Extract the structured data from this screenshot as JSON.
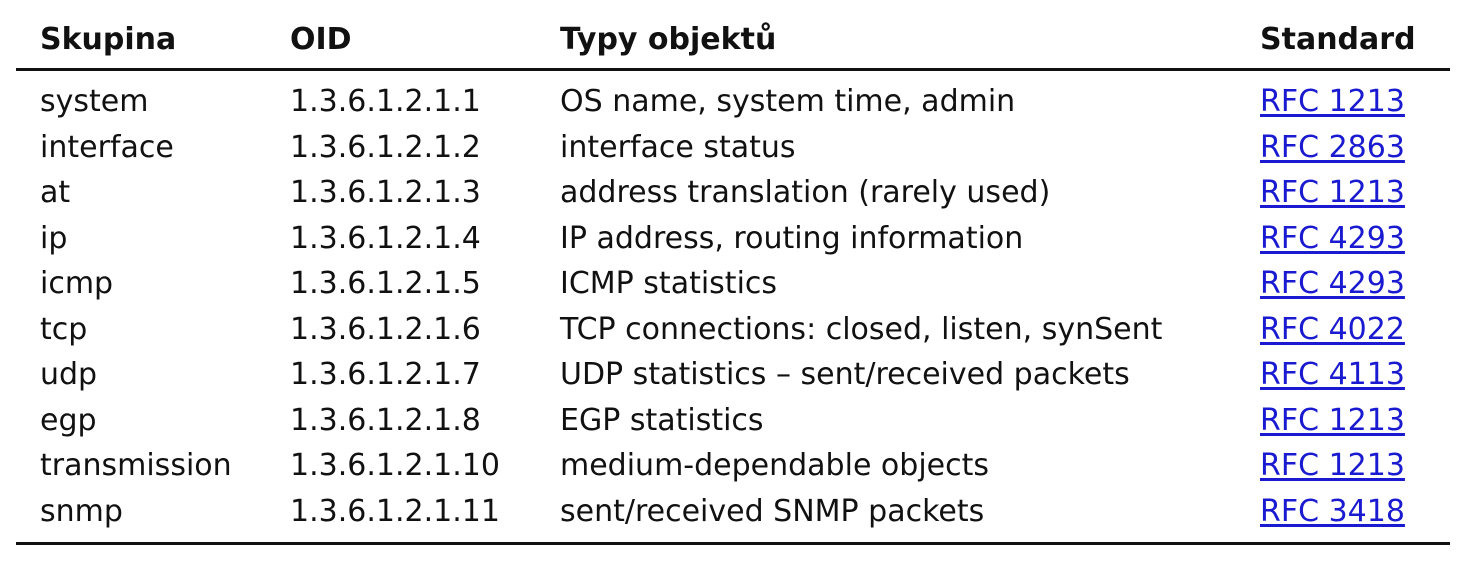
{
  "headers": {
    "group": "Skupina",
    "oid": "OID",
    "types": "Typy objektů",
    "standard": "Standard"
  },
  "rows": [
    {
      "group": "system",
      "oid": "1.3.6.1.2.1.1",
      "types": "OS name, system time, admin",
      "standard": "RFC 1213"
    },
    {
      "group": "interface",
      "oid": "1.3.6.1.2.1.2",
      "types": "interface status",
      "standard": "RFC 2863"
    },
    {
      "group": "at",
      "oid": "1.3.6.1.2.1.3",
      "types": "address translation (rarely used)",
      "standard": "RFC 1213"
    },
    {
      "group": "ip",
      "oid": "1.3.6.1.2.1.4",
      "types": "IP address, routing information",
      "standard": "RFC 4293"
    },
    {
      "group": "icmp",
      "oid": "1.3.6.1.2.1.5",
      "types": "ICMP statistics",
      "standard": "RFC 4293"
    },
    {
      "group": "tcp",
      "oid": "1.3.6.1.2.1.6",
      "types": "TCP connections: closed, listen, synSent",
      "standard": "RFC 4022"
    },
    {
      "group": "udp",
      "oid": "1.3.6.1.2.1.7",
      "types": "UDP statistics – sent/received packets",
      "standard": "RFC 4113"
    },
    {
      "group": "egp",
      "oid": "1.3.6.1.2.1.8",
      "types": "EGP statistics",
      "standard": "RFC 1213"
    },
    {
      "group": "transmission",
      "oid": "1.3.6.1.2.1.10",
      "types": "medium-dependable objects",
      "standard": "RFC 1213"
    },
    {
      "group": "snmp",
      "oid": "1.3.6.1.2.1.11",
      "types": "sent/received SNMP packets",
      "standard": "RFC 3418"
    }
  ],
  "colors": {
    "link": "#1a1ad0",
    "text": "#111111",
    "rule": "#111111"
  }
}
